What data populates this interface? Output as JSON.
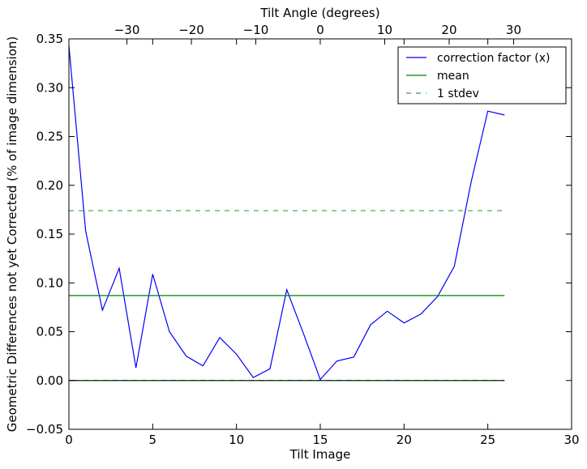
{
  "chart_data": {
    "type": "line",
    "xlabel": "Tilt Image",
    "ylabel": "Geometric Differences not yet Corrected (% of image dimension)",
    "top_xlabel": "Tilt Angle (degrees)",
    "xlim": [
      0,
      30
    ],
    "ylim": [
      -0.05,
      0.35
    ],
    "top_xlim": [
      -39,
      39
    ],
    "x_ticks": [
      0,
      5,
      10,
      15,
      20,
      25,
      30
    ],
    "y_ticks": [
      -0.05,
      0.0,
      0.05,
      0.1,
      0.15,
      0.2,
      0.25,
      0.3,
      0.35
    ],
    "top_x_ticks": [
      -30,
      -20,
      -10,
      0,
      10,
      20,
      30
    ],
    "x_tick_labels": [
      "0",
      "5",
      "10",
      "15",
      "20",
      "25",
      "30"
    ],
    "y_tick_labels": [
      "−0.05",
      "0.00",
      "0.05",
      "0.10",
      "0.15",
      "0.20",
      "0.25",
      "0.30",
      "0.35"
    ],
    "top_x_tick_labels": [
      "−30",
      "−20",
      "−10",
      "0",
      "10",
      "20",
      "30"
    ],
    "grid": false,
    "legend_position": "top-right",
    "series": [
      {
        "name": "correction factor (x)",
        "color": "#0000ff",
        "style": "solid",
        "x": [
          0,
          1,
          2,
          3,
          4,
          5,
          6,
          7,
          8,
          9,
          10,
          11,
          12,
          13,
          14,
          15,
          16,
          17,
          18,
          19,
          20,
          21,
          22,
          23,
          24,
          25,
          26
        ],
        "y": [
          0.343,
          0.153,
          0.072,
          0.115,
          0.013,
          0.109,
          0.05,
          0.025,
          0.015,
          0.044,
          0.027,
          0.003,
          0.012,
          0.093,
          0.048,
          0.001,
          0.02,
          0.024,
          0.057,
          0.071,
          0.059,
          0.068,
          0.086,
          0.117,
          0.203,
          0.276,
          0.272
        ]
      },
      {
        "name": "mean",
        "color": "#008000",
        "style": "solid",
        "x": [
          0,
          26
        ],
        "y": [
          0.087,
          0.087
        ]
      },
      {
        "name": "1 stdev",
        "color": "#008000",
        "style": "dashed",
        "x": [
          0,
          26
        ],
        "y": [
          0.174,
          0.174
        ]
      },
      {
        "color": "#008000",
        "style": "dashed",
        "x": [
          0,
          26
        ],
        "y": [
          0.0,
          0.0
        ]
      }
    ],
    "reference_lines": [
      {
        "y": 0.0,
        "color": "#000000",
        "x": [
          0,
          26
        ]
      }
    ]
  }
}
